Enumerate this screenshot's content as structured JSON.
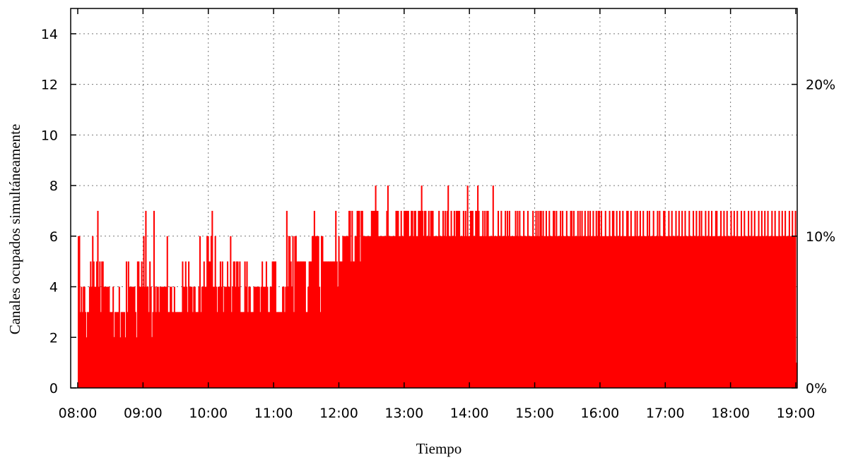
{
  "chart_data": {
    "type": "bar",
    "title": "",
    "xlabel": "Tiempo",
    "ylabel": "Canales ocupados simultáneamente",
    "x_start": "08:00",
    "x_end": "19:00",
    "sample_interval_minutes": 1,
    "x_ticks": [
      "08:00",
      "09:00",
      "10:00",
      "11:00",
      "12:00",
      "13:00",
      "14:00",
      "15:00",
      "16:00",
      "17:00",
      "18:00",
      "19:00"
    ],
    "y_ticks": [
      "0",
      "2",
      "4",
      "6",
      "8",
      "10",
      "12",
      "14"
    ],
    "y2_ticks": [
      "0%",
      "10%",
      "20%"
    ],
    "ylim": [
      0,
      15
    ],
    "y2lim": [
      0,
      25
    ],
    "grid": true,
    "bar_color": "#ff0000",
    "series": [
      {
        "values": [
          6,
          6,
          3,
          4,
          3,
          4,
          4,
          3,
          2,
          3,
          3,
          4,
          5,
          4,
          6,
          5,
          4,
          4,
          5,
          7,
          4,
          5,
          3,
          5,
          5,
          4,
          4,
          4,
          4,
          4,
          4,
          3,
          3,
          3,
          4,
          2,
          3,
          3,
          3,
          3,
          4,
          2,
          3,
          3,
          3,
          3,
          2,
          5,
          3,
          5,
          4,
          4,
          4,
          4,
          4,
          4,
          3,
          2,
          5,
          5,
          4,
          4,
          5,
          4,
          6,
          4,
          7,
          4,
          4,
          3,
          5,
          4,
          2,
          3,
          7,
          4,
          3,
          4,
          4,
          3,
          4,
          4,
          4,
          4,
          4,
          4,
          4,
          6,
          3,
          3,
          4,
          4,
          3,
          3,
          4,
          3,
          3,
          3,
          3,
          3,
          3,
          3,
          5,
          4,
          4,
          5,
          4,
          3,
          5,
          4,
          4,
          4,
          3,
          4,
          4,
          3,
          3,
          3,
          4,
          6,
          3,
          4,
          4,
          5,
          4,
          4,
          6,
          6,
          5,
          5,
          6,
          7,
          4,
          4,
          6,
          4,
          3,
          4,
          4,
          5,
          4,
          5,
          3,
          4,
          4,
          4,
          5,
          4,
          4,
          6,
          3,
          4,
          5,
          5,
          4,
          5,
          5,
          4,
          5,
          3,
          3,
          3,
          3,
          5,
          4,
          5,
          3,
          4,
          4,
          3,
          3,
          3,
          4,
          4,
          4,
          4,
          4,
          4,
          3,
          4,
          5,
          4,
          4,
          4,
          5,
          4,
          3,
          3,
          4,
          4,
          5,
          5,
          5,
          5,
          3,
          3,
          3,
          3,
          3,
          3,
          4,
          4,
          3,
          4,
          7,
          4,
          6,
          6,
          5,
          4,
          6,
          3,
          6,
          6,
          5,
          5,
          5,
          5,
          5,
          5,
          5,
          5,
          5,
          3,
          3,
          4,
          5,
          5,
          5,
          6,
          6,
          7,
          6,
          6,
          6,
          6,
          4,
          3,
          6,
          6,
          5,
          5,
          5,
          5,
          5,
          5,
          5,
          5,
          5,
          5,
          5,
          5,
          7,
          5,
          4,
          6,
          5,
          5,
          5,
          6,
          6,
          6,
          6,
          6,
          6,
          7,
          7,
          5,
          7,
          5,
          5,
          6,
          6,
          7,
          7,
          7,
          5,
          7,
          7,
          6,
          6,
          6,
          6,
          6,
          6,
          6,
          6,
          7,
          7,
          7,
          7,
          8,
          7,
          7,
          6,
          6,
          6,
          6,
          6,
          6,
          6,
          6,
          7,
          8,
          6,
          6,
          6,
          6,
          6,
          6,
          6,
          7,
          7,
          7,
          6,
          6,
          7,
          6,
          6,
          7,
          7,
          7,
          7,
          7,
          6,
          6,
          7,
          7,
          6,
          7,
          7,
          6,
          6,
          7,
          7,
          7,
          8,
          7,
          6,
          7,
          7,
          6,
          6,
          7,
          6,
          7,
          7,
          7,
          6,
          6,
          6,
          6,
          6,
          7,
          6,
          6,
          6,
          7,
          6,
          7,
          6,
          7,
          8,
          6,
          6,
          7,
          6,
          6,
          7,
          6,
          7,
          7,
          7,
          7,
          6,
          6,
          6,
          7,
          6,
          7,
          6,
          8,
          6,
          6,
          7,
          7,
          7,
          6,
          6,
          7,
          7,
          8,
          7,
          6,
          6,
          6,
          7,
          6,
          7,
          6,
          7,
          7,
          6,
          6,
          6,
          6,
          8,
          6,
          6,
          6,
          6,
          7,
          6,
          6,
          7,
          6,
          6,
          6,
          7,
          6,
          7,
          6,
          7,
          6,
          6,
          6,
          6,
          6,
          7,
          6,
          7,
          6,
          7,
          6,
          6,
          6,
          7,
          6,
          6,
          6,
          7,
          6,
          6,
          6,
          6,
          7,
          6,
          6,
          7,
          6,
          7,
          6,
          7,
          7,
          6,
          7,
          6,
          6,
          7,
          6,
          6,
          7,
          6,
          6,
          6,
          7,
          7,
          6,
          7,
          6,
          6,
          6,
          7,
          6,
          7,
          6,
          6,
          6,
          7,
          6,
          6,
          6,
          7,
          7,
          6,
          7,
          6,
          6,
          6,
          7,
          6,
          7,
          6,
          7,
          6,
          6,
          7,
          6,
          6,
          7,
          6,
          7,
          6,
          6,
          7,
          6,
          6,
          7,
          6,
          7,
          7,
          6,
          7,
          6,
          6,
          6,
          7,
          6,
          6,
          6,
          7,
          6,
          6,
          7,
          7,
          6,
          6,
          7,
          6,
          6,
          7,
          6,
          6,
          7,
          6,
          6,
          6,
          7,
          7,
          6,
          6,
          7,
          6,
          6,
          6,
          7,
          6,
          7,
          6,
          6,
          7,
          6,
          6,
          7,
          6,
          6,
          6,
          7,
          6,
          7,
          6,
          6,
          6,
          7,
          6,
          6,
          6,
          7,
          6,
          7,
          6,
          6,
          6,
          7,
          7,
          6,
          6,
          6,
          7,
          6,
          6,
          7,
          6,
          6,
          6,
          7,
          6,
          6,
          7,
          6,
          6,
          7,
          6,
          6,
          7,
          6,
          6,
          6,
          7,
          6,
          6,
          6,
          7,
          6,
          6,
          7,
          6,
          6,
          7,
          6,
          7,
          6,
          6,
          6,
          7,
          6,
          6,
          7,
          6,
          6,
          7,
          6,
          6,
          6,
          7,
          7,
          6,
          6,
          6,
          7,
          6,
          6,
          7,
          6,
          6,
          7,
          6,
          6,
          6,
          7,
          6,
          6,
          7,
          6,
          6,
          7,
          6,
          6,
          6,
          7,
          6,
          6,
          7,
          6,
          6,
          6,
          7,
          6,
          6,
          7,
          6,
          6,
          7,
          6,
          6,
          6,
          7,
          6,
          6,
          7,
          6,
          6,
          7,
          6,
          6,
          7,
          6,
          6,
          6,
          7,
          6,
          6,
          7,
          6,
          6,
          6,
          7,
          6,
          6,
          7,
          6,
          6,
          7,
          6,
          6,
          6,
          7,
          6,
          6,
          7,
          6,
          6,
          7,
          1
        ]
      }
    ]
  }
}
